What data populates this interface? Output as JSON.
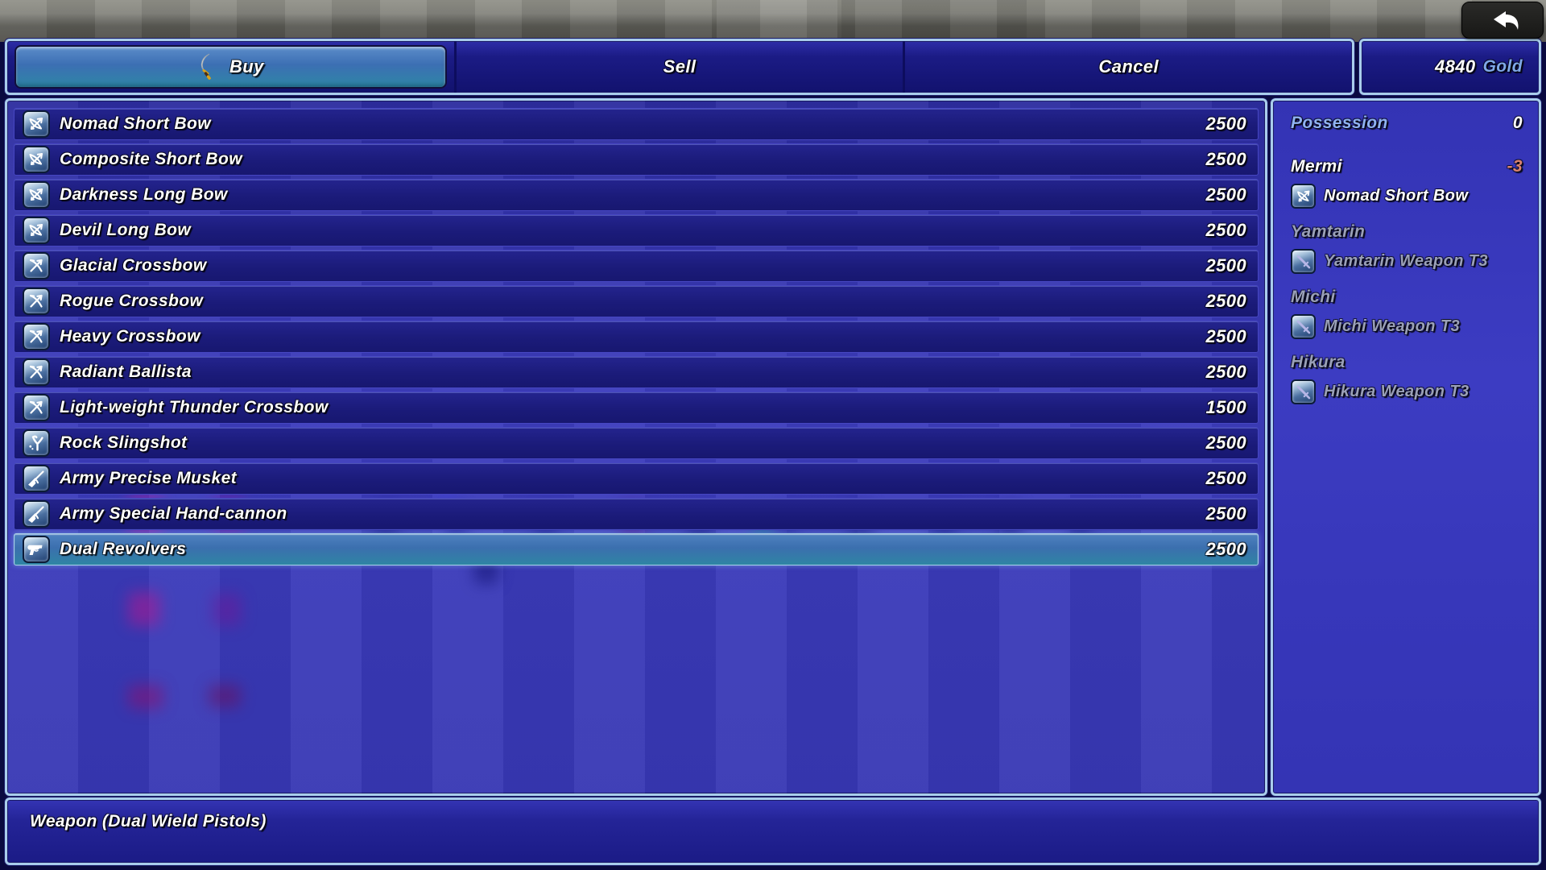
{
  "header": {
    "tabs": [
      {
        "label": "Buy",
        "selected": true
      },
      {
        "label": "Sell",
        "selected": false
      },
      {
        "label": "Cancel",
        "selected": false
      }
    ],
    "gold": {
      "amount": "4840",
      "currency": "Gold"
    }
  },
  "shop": {
    "items": [
      {
        "name": "Nomad Short Bow",
        "price": "2500",
        "icon": "bow",
        "selected": false
      },
      {
        "name": "Composite Short Bow",
        "price": "2500",
        "icon": "bow",
        "selected": false
      },
      {
        "name": "Darkness Long Bow",
        "price": "2500",
        "icon": "bow",
        "selected": false
      },
      {
        "name": "Devil Long Bow",
        "price": "2500",
        "icon": "bow",
        "selected": false
      },
      {
        "name": "Glacial Crossbow",
        "price": "2500",
        "icon": "crossbow",
        "selected": false
      },
      {
        "name": "Rogue Crossbow",
        "price": "2500",
        "icon": "crossbow",
        "selected": false
      },
      {
        "name": "Heavy Crossbow",
        "price": "2500",
        "icon": "crossbow",
        "selected": false
      },
      {
        "name": "Radiant Ballista",
        "price": "2500",
        "icon": "crossbow",
        "selected": false
      },
      {
        "name": "Light-weight Thunder Crossbow",
        "price": "1500",
        "icon": "crossbow",
        "selected": false
      },
      {
        "name": "Rock Slingshot",
        "price": "2500",
        "icon": "slingshot",
        "selected": false
      },
      {
        "name": "Army Precise Musket",
        "price": "2500",
        "icon": "musket",
        "selected": false
      },
      {
        "name": "Army Special Hand-cannon",
        "price": "2500",
        "icon": "musket",
        "selected": false
      },
      {
        "name": "Dual Revolvers",
        "price": "2500",
        "icon": "revolver",
        "selected": true
      }
    ]
  },
  "status_panel": {
    "possession_label": "Possession",
    "possession_value": "0",
    "actors": [
      {
        "name": "Mermi",
        "delta": "-3",
        "equip_name": "Nomad Short Bow",
        "equip_icon": "bow",
        "can_equip": true
      },
      {
        "name": "Yamtarin",
        "delta": "",
        "equip_name": "Yamtarin Weapon T3",
        "equip_icon": "sword",
        "can_equip": false
      },
      {
        "name": "Michi",
        "delta": "",
        "equip_name": "Michi Weapon T3",
        "equip_icon": "sword",
        "can_equip": false
      },
      {
        "name": "Hikura",
        "delta": "",
        "equip_name": "Hikura Weapon T3",
        "equip_icon": "sword",
        "can_equip": false
      }
    ]
  },
  "help_bar": {
    "text": "Weapon (Dual Wield Pistols)"
  },
  "colors": {
    "window_border": "#a9cdec",
    "selected_top": "#4f82c0",
    "selected_bottom": "#2f85a4",
    "gold_label": "#7fa8e8",
    "possession_label": "#8fb2f2",
    "delta_negative": "#d9836f",
    "disabled_text": "#9aa0b8"
  }
}
